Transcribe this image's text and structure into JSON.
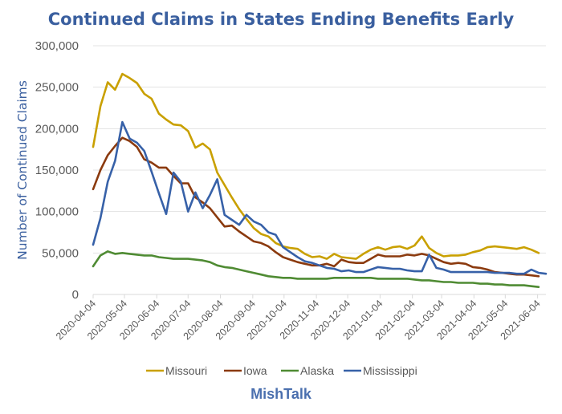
{
  "chart_data": {
    "type": "line",
    "title": "Continued Claims in States Ending Benefits Early",
    "xlabel": "",
    "ylabel": "Number of Continued Claims",
    "ylim": [
      0,
      300000
    ],
    "yticks": [
      0,
      50000,
      100000,
      150000,
      200000,
      250000,
      300000
    ],
    "ytick_labels": [
      "0",
      "50,000",
      "100,000",
      "150,000",
      "200,000",
      "250,000",
      "300,000"
    ],
    "xtick_labels": [
      "2020-04-04",
      "2020-05-04",
      "2020-06-04",
      "2020-07-04",
      "2020-08-04",
      "2020-09-04",
      "2020-10-04",
      "2020-11-04",
      "2020-12-04",
      "2021-01-04",
      "2021-02-04",
      "2021-03-04",
      "2021-04-04",
      "2021-05-04",
      "2021-06-04"
    ],
    "x_start": "2020-04-04",
    "x_interval": "weekly",
    "grid": true,
    "legend": "bottom",
    "series": [
      {
        "name": "Missouri",
        "color": "#c9a000",
        "values": [
          178000,
          227000,
          256000,
          247000,
          266000,
          261000,
          255000,
          242000,
          236000,
          218000,
          211000,
          205000,
          204000,
          197000,
          177000,
          182000,
          175000,
          147000,
          132000,
          117000,
          103000,
          91000,
          80000,
          73000,
          70000,
          62000,
          58000,
          56000,
          55000,
          49000,
          45000,
          46000,
          43000,
          49000,
          45000,
          44000,
          43000,
          49000,
          54000,
          57000,
          54000,
          57000,
          58000,
          55000,
          59000,
          70000,
          56000,
          50000,
          46000,
          47000,
          47000,
          48000,
          51000,
          53000,
          57000,
          58000,
          57000,
          56000,
          55000,
          57000,
          54000,
          50000
        ]
      },
      {
        "name": "Iowa",
        "color": "#8b3a0e",
        "values": [
          127000,
          150000,
          168000,
          179000,
          189000,
          185000,
          178000,
          163000,
          159000,
          153000,
          153000,
          143000,
          134000,
          134000,
          117000,
          111000,
          104000,
          93000,
          82000,
          83000,
          76000,
          70000,
          64000,
          62000,
          58000,
          51000,
          45000,
          42000,
          39000,
          37000,
          35000,
          35000,
          37000,
          34000,
          42000,
          39000,
          38000,
          38000,
          43000,
          48000,
          46000,
          46000,
          46000,
          48000,
          47000,
          49000,
          47000,
          43000,
          39000,
          37000,
          38000,
          37000,
          33000,
          32000,
          30000,
          27000,
          26000,
          25000,
          24000,
          24000,
          23000,
          22000
        ]
      },
      {
        "name": "Alaska",
        "color": "#4f8b33",
        "values": [
          34000,
          47000,
          52000,
          49000,
          50000,
          49000,
          48000,
          47000,
          47000,
          45000,
          44000,
          43000,
          43000,
          43000,
          42000,
          41000,
          39000,
          35000,
          33000,
          32000,
          30000,
          28000,
          26000,
          24000,
          22000,
          21000,
          20000,
          20000,
          19000,
          19000,
          19000,
          19000,
          19000,
          20000,
          20000,
          20000,
          20000,
          20000,
          20000,
          19000,
          19000,
          19000,
          19000,
          19000,
          18000,
          17000,
          17000,
          16000,
          15000,
          15000,
          14000,
          14000,
          14000,
          13000,
          13000,
          12000,
          12000,
          11000,
          11000,
          11000,
          10000,
          9000
        ]
      },
      {
        "name": "Mississippi",
        "color": "#3761a8",
        "values": [
          60000,
          92000,
          136000,
          161000,
          208000,
          188000,
          183000,
          173000,
          148000,
          122000,
          97000,
          147000,
          136000,
          100000,
          123000,
          104000,
          120000,
          139000,
          96000,
          90000,
          84000,
          96000,
          88000,
          84000,
          75000,
          72000,
          57000,
          51000,
          45000,
          40000,
          38000,
          35000,
          32000,
          31000,
          28000,
          29000,
          27000,
          27000,
          30000,
          33000,
          32000,
          31000,
          31000,
          29000,
          28000,
          28000,
          48000,
          32000,
          30000,
          27000,
          27000,
          27000,
          27000,
          27000,
          27000,
          26000,
          26000,
          26000,
          25000,
          25000,
          30000,
          26000,
          25000
        ]
      }
    ]
  },
  "footer": {
    "source": "MishTalk"
  }
}
